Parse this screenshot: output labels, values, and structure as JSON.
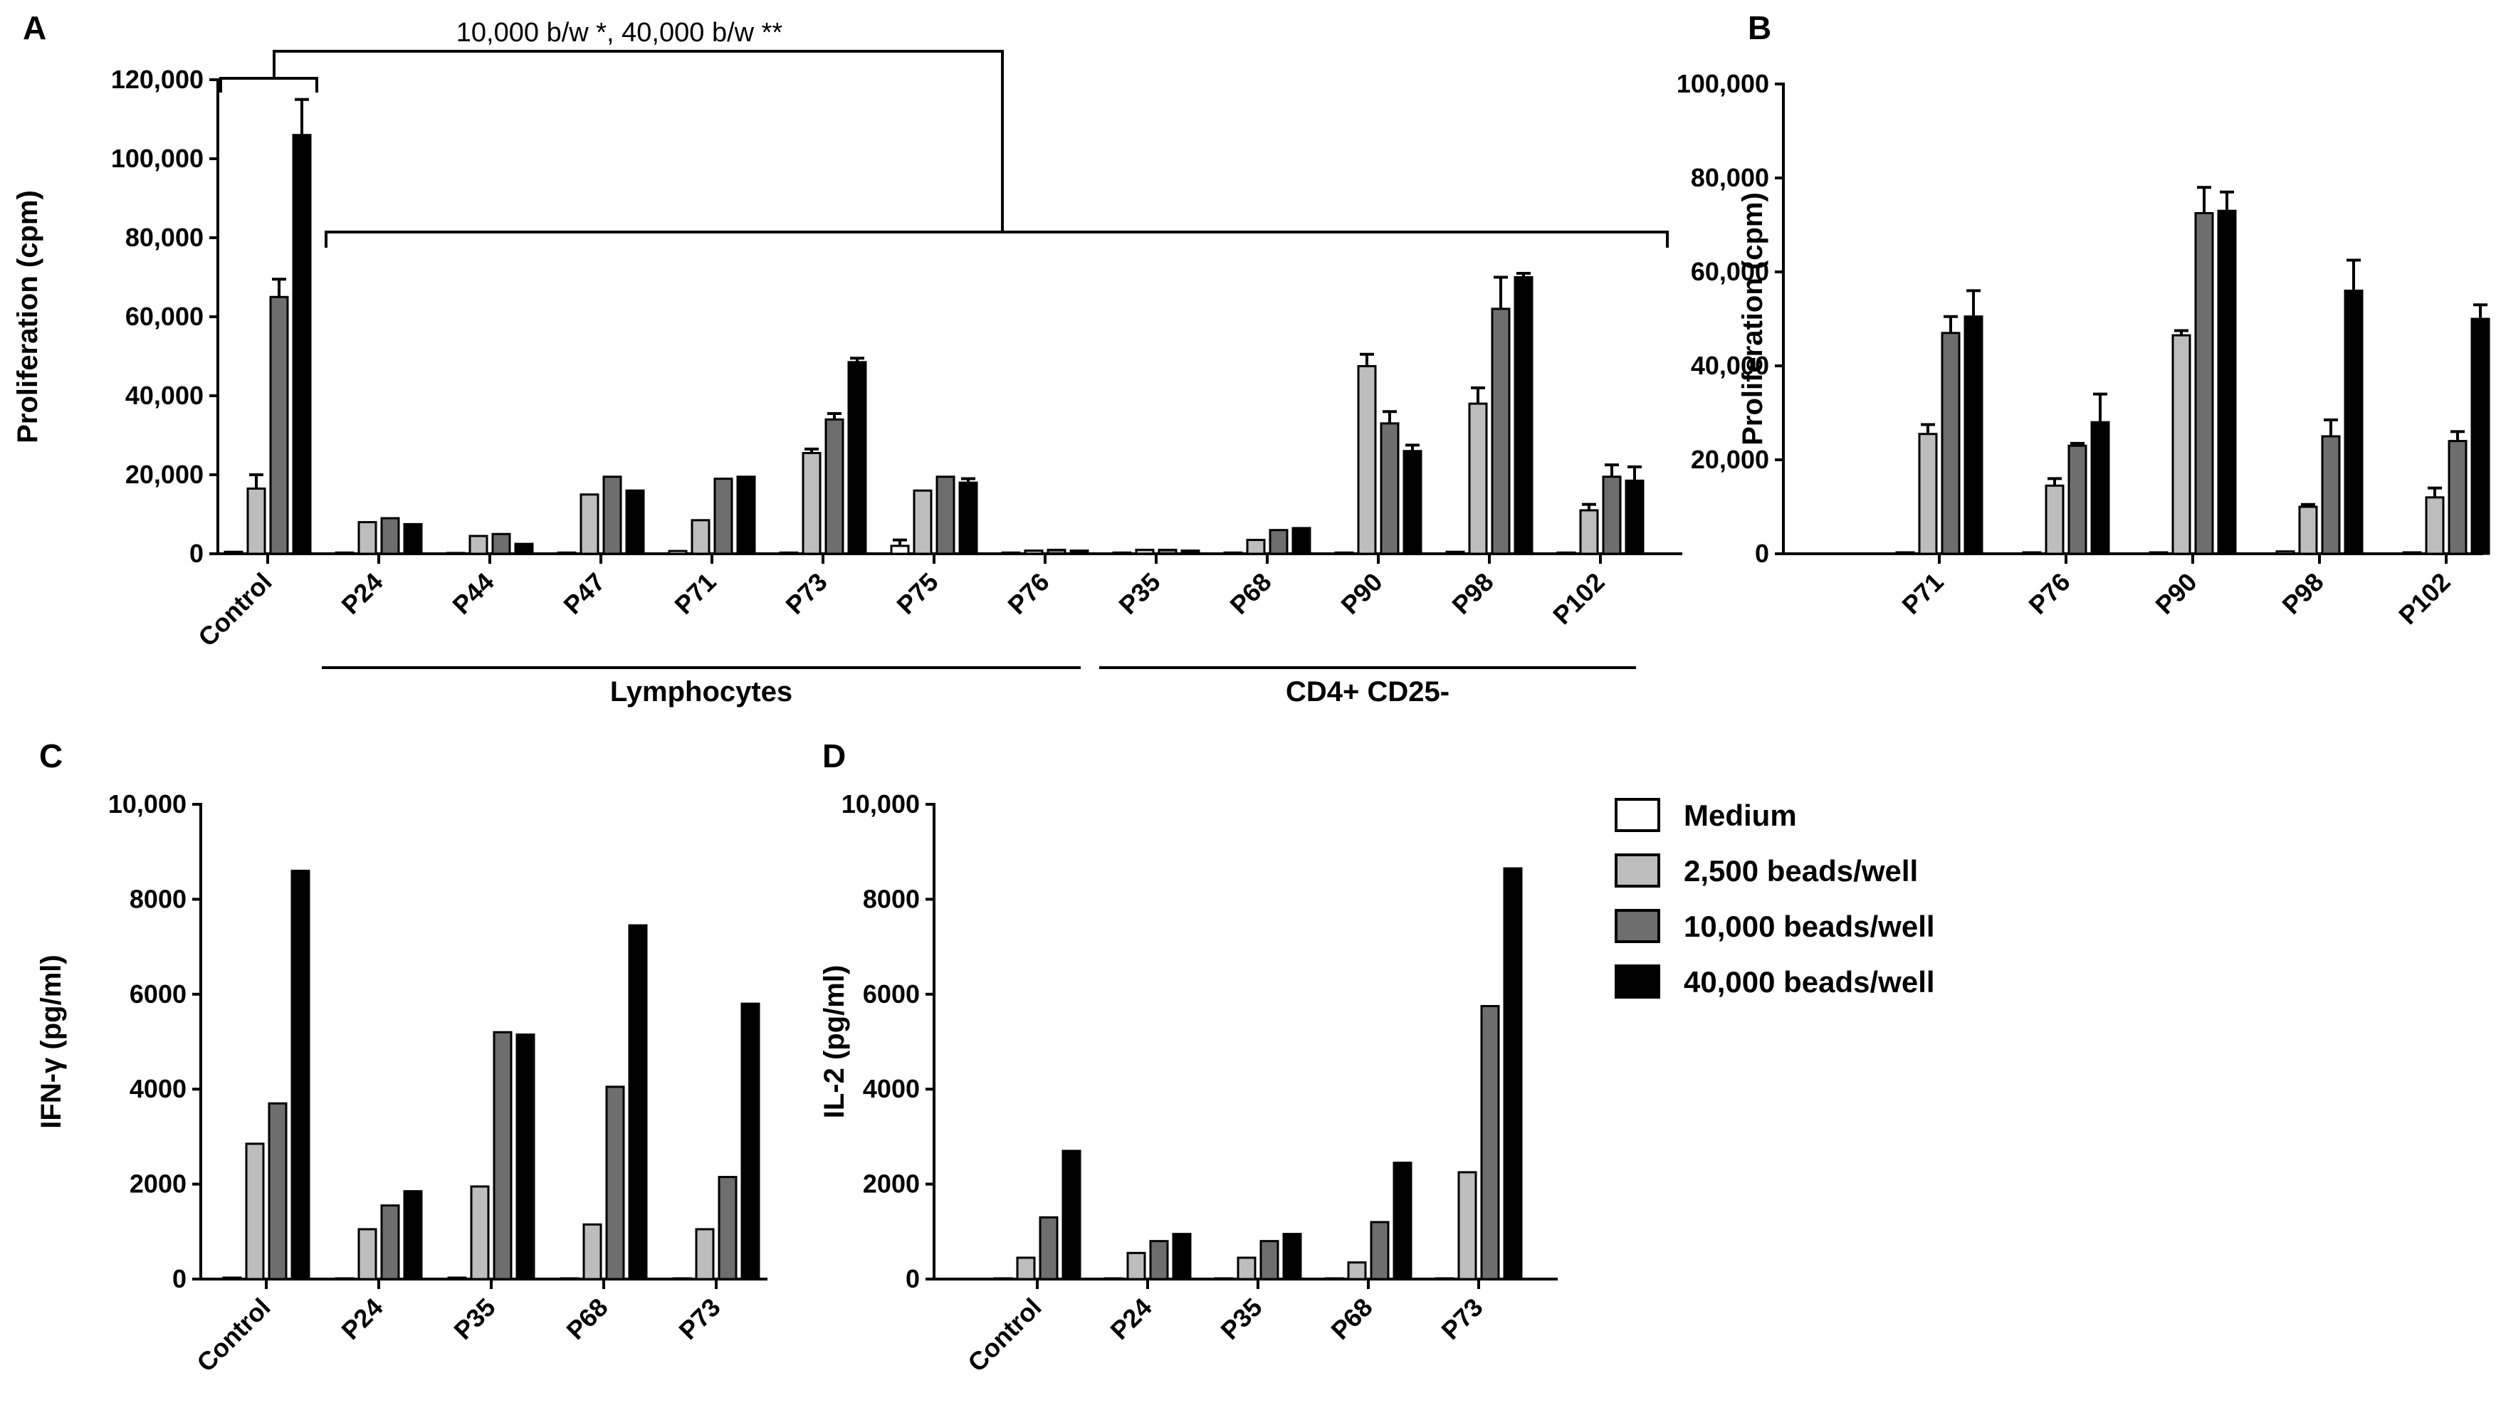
{
  "colors": {
    "medium": "#ffffff",
    "beads_2500": "#bdbdbd",
    "beads_10000": "#6e6e6e",
    "beads_40000": "#000000"
  },
  "legend": {
    "items": [
      "Medium",
      "2,500 beads/well",
      "10,000 beads/well",
      "40,000 beads/well"
    ]
  },
  "chart_data": [
    {
      "id": "A",
      "type": "bar",
      "panel_label": "A",
      "ylabel": "Proliferation (cpm)",
      "ylim": [
        0,
        120000
      ],
      "yticks": [
        0,
        20000,
        40000,
        60000,
        80000,
        100000,
        120000
      ],
      "ytick_labels": [
        "0",
        "20,000",
        "40,000",
        "60,000",
        "80,000",
        "100,000",
        "120,000"
      ],
      "categories": [
        "Control",
        "P24",
        "P44",
        "P47",
        "P71",
        "P73",
        "P75",
        "P76",
        "P35",
        "P68",
        "P90",
        "P98",
        "P102"
      ],
      "series": [
        {
          "name": "Medium",
          "values": [
            500,
            300,
            200,
            300,
            700,
            300,
            2000,
            300,
            300,
            300,
            300,
            500,
            300
          ],
          "errors": [
            0,
            0,
            0,
            0,
            0,
            0,
            1500,
            0,
            0,
            0,
            0,
            0,
            0
          ]
        },
        {
          "name": "2,500 beads/well",
          "values": [
            16500,
            8000,
            4500,
            15000,
            8500,
            25500,
            16000,
            800,
            1000,
            3500,
            47500,
            38000,
            11000
          ],
          "errors": [
            3500,
            0,
            0,
            0,
            0,
            1000,
            0,
            0,
            0,
            0,
            3000,
            4000,
            1500
          ]
        },
        {
          "name": "10,000 beads/well",
          "values": [
            65000,
            9000,
            5000,
            19500,
            19000,
            34000,
            19500,
            1000,
            1000,
            6000,
            33000,
            62000,
            19500
          ],
          "errors": [
            4500,
            0,
            0,
            0,
            0,
            1500,
            0,
            0,
            0,
            0,
            3000,
            8000,
            3000
          ]
        },
        {
          "name": "40,000 beads/well",
          "values": [
            106000,
            7500,
            2500,
            16000,
            19500,
            48500,
            18000,
            800,
            800,
            6500,
            26000,
            70000,
            18500
          ],
          "errors": [
            9000,
            0,
            0,
            0,
            0,
            1000,
            1000,
            0,
            0,
            0,
            1500,
            1000,
            3500
          ]
        }
      ],
      "groups": [
        {
          "label": "Lymphocytes",
          "from": "P24",
          "to": "P76"
        },
        {
          "label": "CD4+ CD25-",
          "from": "P35",
          "to": "P102"
        }
      ],
      "annotation": "10,000 b/w *, 40,000 b/w **"
    },
    {
      "id": "B",
      "type": "bar",
      "panel_label": "B",
      "ylabel": "Proliferation (cpm)",
      "ylim": [
        0,
        100000
      ],
      "yticks": [
        0,
        20000,
        40000,
        60000,
        80000,
        100000
      ],
      "ytick_labels": [
        "0",
        "20,000",
        "40,000",
        "60,000",
        "80,000",
        "100,000"
      ],
      "categories": [
        "P71",
        "P76",
        "P90",
        "P98",
        "P102"
      ],
      "series": [
        {
          "name": "Medium",
          "values": [
            300,
            300,
            300,
            500,
            300
          ],
          "errors": [
            0,
            0,
            0,
            0,
            0
          ]
        },
        {
          "name": "2,500 beads/well",
          "values": [
            25500,
            14500,
            46500,
            10000,
            12000
          ],
          "errors": [
            2000,
            1500,
            1000,
            500,
            2000
          ]
        },
        {
          "name": "10,000 beads/well",
          "values": [
            47000,
            23000,
            72500,
            25000,
            24000
          ],
          "errors": [
            3500,
            500,
            5500,
            3500,
            2000
          ]
        },
        {
          "name": "40,000 beads/well",
          "values": [
            50500,
            28000,
            73000,
            56000,
            50000
          ],
          "errors": [
            5500,
            6000,
            4000,
            6500,
            3000
          ]
        }
      ]
    },
    {
      "id": "C",
      "type": "bar",
      "panel_label": "C",
      "ylabel": "IFN-γ (pg/ml)",
      "ylim": [
        0,
        10000
      ],
      "yticks": [
        0,
        2000,
        4000,
        6000,
        8000,
        10000
      ],
      "ytick_labels": [
        "0",
        "2000",
        "4000",
        "6000",
        "8000",
        "10,000"
      ],
      "categories": [
        "Control",
        "P24",
        "P35",
        "P68",
        "P73"
      ],
      "series": [
        {
          "name": "Medium",
          "values": [
            30,
            0,
            30,
            0,
            0
          ]
        },
        {
          "name": "2,500 beads/well",
          "values": [
            2850,
            1050,
            1950,
            1150,
            1050
          ]
        },
        {
          "name": "10,000 beads/well",
          "values": [
            3700,
            1550,
            5200,
            4050,
            2150
          ]
        },
        {
          "name": "40,000 beads/well",
          "values": [
            8600,
            1850,
            5150,
            7450,
            5800
          ]
        }
      ]
    },
    {
      "id": "D",
      "type": "bar",
      "panel_label": "D",
      "ylabel": "IL-2 (pg/ml)",
      "ylim": [
        0,
        10000
      ],
      "yticks": [
        0,
        2000,
        4000,
        6000,
        8000,
        10000
      ],
      "ytick_labels": [
        "0",
        "2000",
        "4000",
        "6000",
        "8000",
        "10,000"
      ],
      "categories": [
        "Control",
        "P24",
        "P35",
        "P68",
        "P73"
      ],
      "series": [
        {
          "name": "Medium",
          "values": [
            0,
            0,
            0,
            0,
            0
          ]
        },
        {
          "name": "2,500 beads/well",
          "values": [
            450,
            550,
            450,
            350,
            2250
          ]
        },
        {
          "name": "10,000 beads/well",
          "values": [
            1300,
            800,
            800,
            1200,
            5750
          ]
        },
        {
          "name": "40,000 beads/well",
          "values": [
            2700,
            950,
            950,
            2450,
            8650
          ]
        }
      ]
    }
  ]
}
